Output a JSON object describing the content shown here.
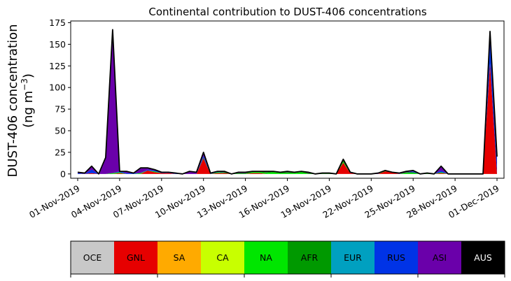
{
  "chart_data": {
    "type": "area",
    "stacked": true,
    "title": "Continental contribution to DUST-406 concentrations",
    "ylabel_line1": "DUST-406 concentration",
    "ylabel_line2": "(ng m",
    "ylabel_sup": "−3",
    "ylabel_close": ")",
    "ylim": [
      -5,
      177
    ],
    "yticks": [
      0,
      25,
      50,
      75,
      100,
      125,
      150,
      175
    ],
    "xlim": [
      -0.5,
      30.5
    ],
    "xticks": [
      {
        "x": 0,
        "label": "01-Nov-2019"
      },
      {
        "x": 3,
        "label": "04-Nov-2019"
      },
      {
        "x": 6,
        "label": "07-Nov-2019"
      },
      {
        "x": 9,
        "label": "10-Nov-2019"
      },
      {
        "x": 12,
        "label": "13-Nov-2019"
      },
      {
        "x": 15,
        "label": "16-Nov-2019"
      },
      {
        "x": 18,
        "label": "19-Nov-2019"
      },
      {
        "x": 21,
        "label": "22-Nov-2019"
      },
      {
        "x": 24,
        "label": "25-Nov-2019"
      },
      {
        "x": 27,
        "label": "28-Nov-2019"
      },
      {
        "x": 30,
        "label": "01-Dec-2019"
      }
    ],
    "x": [
      0,
      0.5,
      1,
      1.5,
      2,
      2.5,
      3,
      3.5,
      4,
      4.5,
      5,
      5.5,
      6,
      6.5,
      7,
      7.5,
      8,
      8.5,
      9,
      9.5,
      10,
      10.5,
      11,
      11.5,
      12,
      12.5,
      13,
      13.5,
      14,
      14.5,
      15,
      15.5,
      16,
      16.5,
      17,
      17.5,
      18,
      18.5,
      19,
      19.5,
      20,
      20.5,
      21,
      21.5,
      22,
      22.5,
      23,
      23.5,
      24,
      24.5,
      25,
      25.5,
      26,
      26.5,
      27,
      27.5,
      28,
      28.5,
      29,
      29.5,
      30
    ],
    "series": [
      {
        "name": "OCE",
        "color": "#c8c8c8",
        "values": [
          0,
          0,
          0,
          0,
          0,
          0,
          0,
          0,
          0,
          0,
          0,
          0,
          0,
          0,
          0,
          0,
          0,
          0,
          0,
          0,
          0,
          0,
          0,
          0,
          0,
          0,
          0,
          0,
          0,
          0,
          0,
          0,
          0,
          0,
          0,
          0,
          0,
          0,
          0,
          0,
          0,
          0,
          0,
          0,
          0,
          0,
          0,
          0,
          0,
          0,
          0,
          0,
          0,
          0,
          0,
          0,
          0,
          0,
          0,
          0,
          0
        ]
      },
      {
        "name": "GNL",
        "color": "#e60000",
        "values": [
          0,
          0,
          1,
          0,
          0,
          0,
          1,
          0,
          0,
          0,
          4,
          2,
          1,
          1,
          0,
          0,
          0,
          0,
          18,
          0,
          1,
          1,
          0,
          0,
          0,
          1,
          1,
          0,
          0,
          0,
          0,
          0,
          0,
          0,
          0,
          0,
          0,
          0,
          13,
          1,
          0,
          0,
          0,
          0,
          3,
          2,
          0,
          0,
          0,
          0,
          0,
          0,
          1,
          0,
          0,
          0,
          0,
          0,
          0,
          128,
          0
        ]
      },
      {
        "name": "SA",
        "color": "#ffaa00",
        "values": [
          0,
          0,
          0,
          0,
          0,
          0,
          0,
          0,
          0,
          0,
          0,
          0,
          0,
          0,
          0,
          0,
          0,
          0,
          0,
          0,
          0,
          0,
          0,
          0,
          0,
          0,
          0,
          0,
          0,
          0,
          0,
          0,
          0,
          0,
          0,
          0,
          0,
          0,
          0,
          0,
          0,
          0,
          0,
          0,
          0,
          0,
          0,
          0,
          0,
          0,
          0,
          0,
          0,
          0,
          0,
          0,
          0,
          0,
          0,
          0,
          0
        ]
      },
      {
        "name": "CA",
        "color": "#c8ff00",
        "values": [
          0,
          0,
          0,
          0,
          0,
          0,
          0,
          0,
          0,
          0,
          0,
          0,
          0,
          0,
          0,
          0,
          0,
          0,
          0,
          0,
          0,
          0,
          0,
          0,
          0,
          0,
          0,
          0,
          0,
          0,
          0,
          0,
          0,
          0,
          0,
          0,
          0,
          0,
          0,
          0,
          0,
          0,
          0,
          0,
          0,
          0,
          0,
          0,
          0,
          0,
          0,
          0,
          0,
          0,
          0,
          0,
          0,
          0,
          0,
          0,
          0
        ]
      },
      {
        "name": "NA",
        "color": "#00e600",
        "values": [
          0,
          0,
          0,
          0,
          0,
          1,
          1,
          0,
          0,
          1,
          0,
          1,
          0,
          0,
          0,
          0,
          0,
          0,
          0,
          0,
          1,
          0,
          0,
          0,
          0,
          1,
          1,
          1,
          2,
          1,
          1,
          1,
          2,
          0,
          0,
          0,
          0,
          0,
          1,
          0,
          0,
          0,
          0,
          0,
          1,
          0,
          0,
          1,
          1,
          0,
          1,
          0,
          1,
          0,
          0,
          0,
          0,
          0,
          0,
          0,
          0
        ]
      },
      {
        "name": "AFR",
        "color": "#009900",
        "values": [
          0,
          0,
          0,
          0,
          0,
          0,
          0,
          0,
          0,
          0,
          0,
          0,
          0,
          0,
          0,
          0,
          0,
          0,
          1,
          0,
          0,
          1,
          0,
          1,
          1,
          1,
          1,
          1,
          1,
          1,
          1,
          1,
          1,
          1,
          0,
          1,
          1,
          0,
          2,
          0,
          0,
          0,
          0,
          0,
          0,
          0,
          0,
          1,
          1,
          0,
          0,
          0,
          0,
          0,
          0,
          0,
          0,
          0,
          0,
          0,
          0
        ]
      },
      {
        "name": "EUR",
        "color": "#00a0c0",
        "values": [
          0,
          0,
          0,
          0,
          0,
          0,
          0,
          0,
          0,
          0,
          0,
          0,
          0,
          0,
          0,
          0,
          0,
          0,
          0,
          0,
          0,
          0,
          0,
          0,
          0,
          0,
          0,
          0,
          0,
          0,
          0,
          0,
          0,
          0,
          0,
          0,
          0,
          0,
          0,
          0,
          0,
          0,
          0,
          0,
          0,
          0,
          0,
          0,
          0,
          0,
          0,
          0,
          0,
          0,
          0,
          0,
          0,
          0,
          0,
          0,
          0
        ]
      },
      {
        "name": "RUS",
        "color": "#0033e6",
        "values": [
          1,
          0,
          4,
          0,
          0,
          0,
          1,
          1,
          1,
          0,
          1,
          1,
          1,
          0,
          1,
          0,
          0,
          0,
          2,
          1,
          1,
          0,
          0,
          0,
          0,
          0,
          0,
          0,
          0,
          0,
          0,
          0,
          0,
          0,
          0,
          0,
          0,
          0,
          1,
          0,
          0,
          0,
          0,
          0,
          0,
          0,
          0,
          0,
          1,
          0,
          0,
          0,
          2,
          0,
          0,
          0,
          0,
          0,
          0,
          37,
          20
        ]
      },
      {
        "name": "ASI",
        "color": "#6a00aa",
        "values": [
          1,
          1,
          4,
          0,
          19,
          166,
          0,
          2,
          0,
          6,
          2,
          1,
          0,
          1,
          0,
          0,
          3,
          2,
          4,
          0,
          0,
          1,
          0,
          1,
          1,
          0,
          0,
          1,
          0,
          0,
          1,
          0,
          0,
          1,
          0,
          0,
          0,
          0,
          0,
          1,
          0,
          0,
          0,
          1,
          0,
          0,
          1,
          1,
          1,
          0,
          0,
          0,
          5,
          0,
          0,
          0,
          0,
          0,
          0,
          0,
          0
        ]
      },
      {
        "name": "AUS",
        "color": "#000000",
        "values": [
          0,
          0,
          0,
          0,
          0,
          0,
          0,
          0,
          0,
          0,
          0,
          0,
          0,
          0,
          0,
          0,
          0,
          0,
          0,
          0,
          0,
          0,
          0,
          0,
          0,
          0,
          0,
          0,
          0,
          0,
          0,
          0,
          0,
          0,
          0,
          0,
          0,
          0,
          0,
          0,
          0,
          0,
          0,
          0,
          0,
          0,
          0,
          0,
          0,
          0,
          0,
          0,
          0,
          0,
          0,
          0,
          0,
          0,
          0,
          0,
          0
        ]
      }
    ],
    "legend_text_colors": [
      "#000000",
      "#000000",
      "#000000",
      "#000000",
      "#000000",
      "#000000",
      "#000000",
      "#000000",
      "#000000",
      "#ffffff"
    ]
  }
}
